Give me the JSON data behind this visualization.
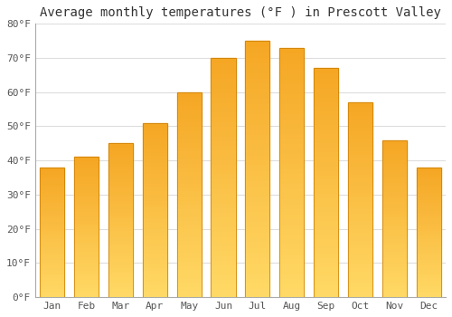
{
  "title": "Average monthly temperatures (°F ) in Prescott Valley",
  "months": [
    "Jan",
    "Feb",
    "Mar",
    "Apr",
    "May",
    "Jun",
    "Jul",
    "Aug",
    "Sep",
    "Oct",
    "Nov",
    "Dec"
  ],
  "values": [
    38,
    41,
    45,
    51,
    60,
    70,
    75,
    73,
    67,
    57,
    46,
    38
  ],
  "bar_color_dark": "#F5A623",
  "bar_color_light": "#FFD966",
  "bar_edge_color": "#C87A00",
  "background_color": "#FFFFFF",
  "grid_color": "#DDDDDD",
  "ylim": [
    0,
    80
  ],
  "yticks": [
    0,
    10,
    20,
    30,
    40,
    50,
    60,
    70,
    80
  ],
  "ytick_labels": [
    "0°F",
    "10°F",
    "20°F",
    "30°F",
    "40°F",
    "50°F",
    "60°F",
    "70°F",
    "80°F"
  ],
  "title_fontsize": 10,
  "tick_fontsize": 8,
  "font_family": "monospace"
}
